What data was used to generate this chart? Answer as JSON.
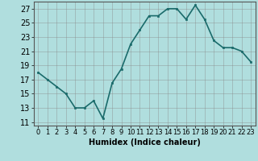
{
  "x": [
    0,
    1,
    2,
    3,
    4,
    5,
    6,
    7,
    8,
    9,
    10,
    11,
    12,
    13,
    14,
    15,
    16,
    17,
    18,
    19,
    20,
    21,
    22,
    23
  ],
  "y": [
    18,
    17,
    16,
    15,
    13,
    13,
    14,
    11.5,
    16.5,
    18.5,
    22,
    24,
    26,
    26,
    27,
    27,
    25.5,
    27.5,
    25.5,
    22.5,
    21.5,
    21.5,
    21,
    19.5
  ],
  "line_color": "#1a6b6b",
  "marker_color": "#1a6b6b",
  "bg_color": "#b0dede",
  "grid_color": "#888888",
  "xlabel": "Humidex (Indice chaleur)",
  "ylabel": "",
  "xlim": [
    -0.5,
    23.5
  ],
  "ylim": [
    10.5,
    28
  ],
  "yticks": [
    11,
    13,
    15,
    17,
    19,
    21,
    23,
    25,
    27
  ],
  "xtick_labels": [
    "0",
    "1",
    "2",
    "3",
    "4",
    "5",
    "6",
    "7",
    "8",
    "9",
    "10",
    "11",
    "12",
    "13",
    "14",
    "15",
    "16",
    "17",
    "18",
    "19",
    "20",
    "21",
    "22",
    "23"
  ],
  "xlabel_fontsize": 7,
  "tick_fontsize": 7,
  "linewidth": 1.2,
  "markersize": 2.0
}
